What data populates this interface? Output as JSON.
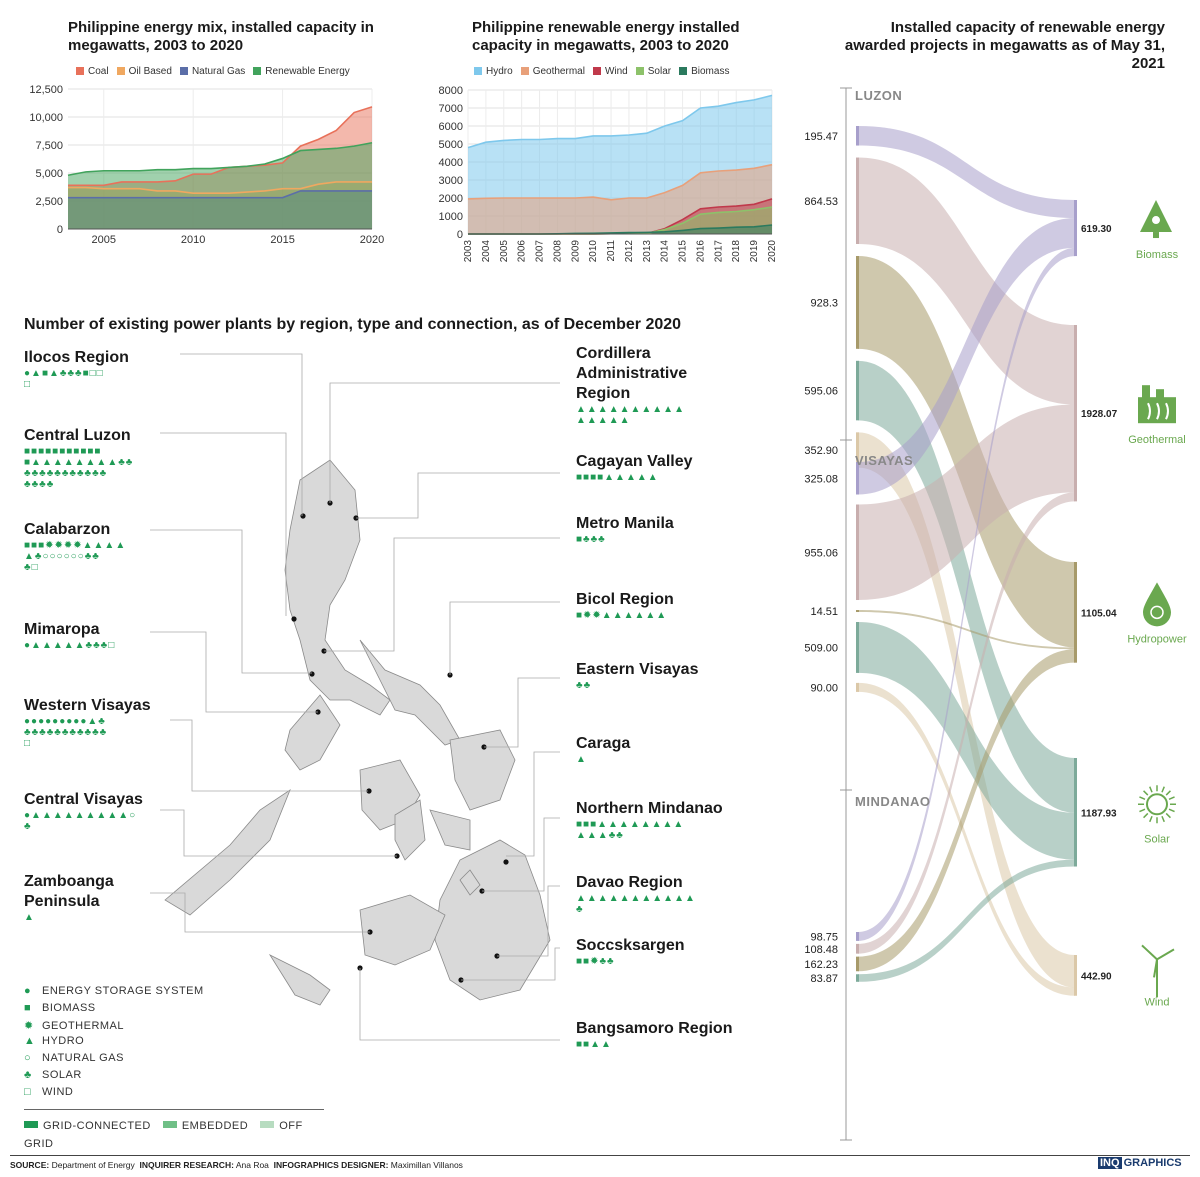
{
  "chart_data": [
    {
      "type": "area",
      "title": "Philippine energy mix, installed capacity in megawatts, 2003 to 2020",
      "legend": [
        "Coal",
        "Oil Based",
        "Natural Gas",
        "Renewable Energy"
      ],
      "colors": [
        "#e8715a",
        "#f0a860",
        "#5b6ea8",
        "#41a35c"
      ],
      "x": [
        2003,
        2004,
        2005,
        2006,
        2007,
        2008,
        2009,
        2010,
        2011,
        2012,
        2013,
        2014,
        2015,
        2016,
        2017,
        2018,
        2019,
        2020
      ],
      "x_ticks": [
        "2005",
        "2010",
        "2015",
        "2020"
      ],
      "y_ticks": [
        "0",
        "2,500",
        "5,000",
        "7,500",
        "10,000",
        "12,500"
      ],
      "ylim": [
        0,
        12500
      ],
      "series": [
        {
          "name": "Coal",
          "values": [
            3900,
            3900,
            3900,
            4200,
            4200,
            4200,
            4300,
            4900,
            4900,
            5500,
            5600,
            5700,
            5900,
            7400,
            8000,
            8800,
            10400,
            10900
          ]
        },
        {
          "name": "Oil Based",
          "values": [
            3700,
            3700,
            3600,
            3600,
            3600,
            3400,
            3400,
            3200,
            3200,
            3200,
            3300,
            3400,
            3600,
            3600,
            4000,
            4200,
            4200,
            4200
          ]
        },
        {
          "name": "Natural Gas",
          "values": [
            2800,
            2800,
            2800,
            2800,
            2800,
            2800,
            2800,
            2800,
            2800,
            2800,
            2800,
            2800,
            2800,
            3400,
            3400,
            3400,
            3400,
            3400
          ]
        },
        {
          "name": "Renewable Energy",
          "values": [
            4800,
            5100,
            5200,
            5200,
            5200,
            5300,
            5300,
            5400,
            5400,
            5500,
            5600,
            5800,
            6300,
            7000,
            7100,
            7200,
            7400,
            7700
          ]
        }
      ]
    },
    {
      "type": "area",
      "title": "Philippine renewable energy installed capacity in megawatts, 2003 to 2020",
      "legend": [
        "Hydro",
        "Geothermal",
        "Wind",
        "Solar",
        "Biomass"
      ],
      "colors": [
        "#7ec8ec",
        "#e8a07a",
        "#c0394b",
        "#8dc26a",
        "#2b7a5e"
      ],
      "x": [
        2003,
        2004,
        2005,
        2006,
        2007,
        2008,
        2009,
        2010,
        2011,
        2012,
        2013,
        2014,
        2015,
        2016,
        2017,
        2018,
        2019,
        2020
      ],
      "x_ticks": [
        "2003",
        "2004",
        "2005",
        "2006",
        "2007",
        "2008",
        "2009",
        "2010",
        "2011",
        "2012",
        "2013",
        "2014",
        "2015",
        "2016",
        "2017",
        "2018",
        "2019",
        "2020"
      ],
      "y_ticks": [
        "0",
        "1000",
        "2000",
        "3000",
        "4000",
        "5000",
        "6000",
        "7000",
        "8000"
      ],
      "ylim": [
        0,
        8000
      ],
      "series": [
        {
          "name": "Hydro",
          "values": [
            4800,
            5100,
            5200,
            5250,
            5250,
            5300,
            5300,
            5450,
            5450,
            5500,
            5600,
            6000,
            6300,
            7000,
            7100,
            7300,
            7450,
            7700
          ]
        },
        {
          "name": "Geothermal",
          "values": [
            1950,
            1980,
            2000,
            2000,
            2000,
            2000,
            2000,
            2050,
            1900,
            2000,
            2000,
            2300,
            2700,
            3400,
            3500,
            3550,
            3650,
            3850
          ]
        },
        {
          "name": "Wind",
          "values": [
            0,
            0,
            0,
            0,
            0,
            0,
            0,
            0,
            20,
            30,
            30,
            300,
            800,
            1400,
            1500,
            1550,
            1650,
            1950
          ]
        },
        {
          "name": "Solar",
          "values": [
            0,
            0,
            0,
            0,
            0,
            0,
            0,
            0,
            20,
            30,
            30,
            250,
            600,
            1100,
            1200,
            1250,
            1350,
            1500
          ]
        },
        {
          "name": "Biomass",
          "values": [
            0,
            0,
            0,
            0,
            0,
            10,
            30,
            40,
            60,
            80,
            90,
            120,
            200,
            300,
            330,
            380,
            400,
            500
          ]
        }
      ]
    },
    {
      "type": "sankey",
      "title": "Installed capacity of renewable energy awarded projects in megawatts as of May 31, 2021",
      "sources": [
        {
          "name": "LUZON",
          "flows": [
            {
              "target": "Biomass",
              "value": 195.47
            },
            {
              "target": "Geothermal",
              "value": 864.53
            },
            {
              "target": "Hydropower",
              "value": 928.3
            },
            {
              "target": "Solar",
              "value": 595.06
            },
            {
              "target": "Wind",
              "value": 352.9
            }
          ]
        },
        {
          "name": "VISAYAS",
          "flows": [
            {
              "target": "Biomass",
              "value": 325.08
            },
            {
              "target": "Geothermal",
              "value": 955.06
            },
            {
              "target": "Hydropower",
              "value": 14.51
            },
            {
              "target": "Solar",
              "value": 509.0
            },
            {
              "target": "Wind",
              "value": 90.0
            }
          ]
        },
        {
          "name": "MINDANAO",
          "flows": [
            {
              "target": "Biomass",
              "value": 98.75
            },
            {
              "target": "Geothermal",
              "value": 108.48
            },
            {
              "target": "Hydropower",
              "value": 162.23
            },
            {
              "target": "Solar",
              "value": 83.87
            }
          ]
        }
      ],
      "targets": [
        {
          "name": "Biomass",
          "value": "619.30",
          "color": "#a79fcb"
        },
        {
          "name": "Geothermal",
          "value": "1928.07",
          "color": "#c8aeae"
        },
        {
          "name": "Hydropower",
          "value": "1105.04",
          "color": "#a79a6a"
        },
        {
          "name": "Solar",
          "value": "1187.93",
          "color": "#7daa9a"
        },
        {
          "name": "Wind",
          "value": "442.90",
          "color": "#dbc8a8"
        }
      ],
      "value_labels": [
        "195.47",
        "864.53",
        "928.3",
        "595.06",
        "352.90",
        "325.08",
        "955.06",
        "14.51",
        "509.00",
        "90.00",
        "98.75",
        "108.48",
        "162.23",
        "83.87"
      ]
    }
  ],
  "plants": {
    "title": "Number of existing power plants by region, type and connection, as of December 2020",
    "left": [
      {
        "name": "Ilocos Region",
        "l1": "●▲■▲♣♣♣■□□",
        "l2": "□"
      },
      {
        "name": "Central Luzon",
        "l1": "■■■■■■■■■■■",
        "l2": "■▲▲▲▲▲▲▲▲♣♣",
        "l3": "♣♣♣♣♣♣♣♣♣♣♣",
        "l4": "♣♣♣♣"
      },
      {
        "name": "Calabarzon",
        "l1": "■■■✹✹✹✹▲▲▲▲",
        "l2": "▲♣○○○○○○♣♣",
        "l3": "♣□"
      },
      {
        "name": "Mimaropa",
        "l1": "●▲▲▲▲▲♣♣♣□"
      },
      {
        "name": "Western Visayas",
        "l1": "●●●●●●●●●▲♣",
        "l2": "♣♣♣♣♣♣♣♣♣♣♣",
        "l3": "□"
      },
      {
        "name": "Central Visayas",
        "l1": "●▲▲▲▲▲▲▲▲▲○",
        "l2": "♣"
      },
      {
        "name": "Zamboanga",
        "name2": "Peninsula",
        "l1": "▲"
      }
    ],
    "right": [
      {
        "name": "Cordillera",
        "name2": "Administrative",
        "name3": "Region",
        "l1": "▲▲▲▲▲▲▲▲▲▲",
        "l2": "▲▲▲▲▲"
      },
      {
        "name": "Cagayan Valley",
        "l1": "■■■■▲▲▲▲▲"
      },
      {
        "name": "Metro Manila",
        "l1": "■♣♣♣"
      },
      {
        "name": "Bicol Region",
        "l1": "■✹✹▲▲▲▲▲▲"
      },
      {
        "name": "Eastern Visayas",
        "l1": "♣♣"
      },
      {
        "name": "Caraga",
        "l1": "▲"
      },
      {
        "name": "Northern Mindanao",
        "l1": "■■■▲▲▲▲▲▲▲▲",
        "l2": "▲▲▲♣♣"
      },
      {
        "name": "Davao Region",
        "l1": "▲▲▲▲▲▲▲▲▲▲▲",
        "l2": "♣"
      },
      {
        "name": "Soccsksargen",
        "l1": "■■✹♣♣"
      },
      {
        "name": "Bangsamoro Region",
        "l1": "■■▲▲"
      }
    ],
    "legend_types": [
      {
        "icon": "●",
        "label": "ENERGY STORAGE SYSTEM"
      },
      {
        "icon": "■",
        "label": "BIOMASS"
      },
      {
        "icon": "✹",
        "label": "GEOTHERMAL"
      },
      {
        "icon": "▲",
        "label": "HYDRO"
      },
      {
        "icon": "○",
        "label": "NATURAL GAS"
      },
      {
        "icon": "♣",
        "label": "SOLAR"
      },
      {
        "icon": "□",
        "label": "WIND"
      }
    ],
    "legend_conn": [
      {
        "label": "GRID-CONNECTED",
        "color": "#1f9a55"
      },
      {
        "label": "EMBEDDED",
        "color": "#6fbf86"
      },
      {
        "label": "OFF GRID",
        "color": "#b7dcc0"
      }
    ]
  },
  "footer": {
    "source_label": "SOURCE:",
    "source": "Department of Energy",
    "research_label": "INQUIRER RESEARCH:",
    "research": "Ana Roa",
    "designer_label": "INFOGRAPHICS DESIGNER:",
    "designer": "Maximillan Villanos",
    "brand1": "INQ",
    "brand2": "GRAPHICS"
  }
}
